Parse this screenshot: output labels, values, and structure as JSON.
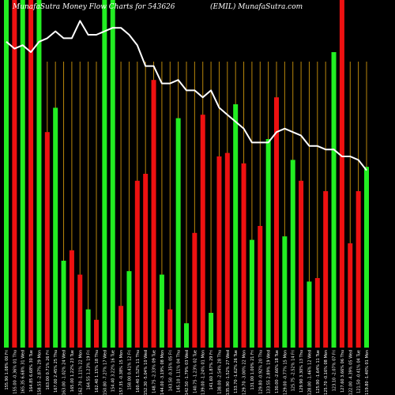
{
  "header": {
    "title": "MunafaSutra  Money Flow  Charts for 543626",
    "ticker": "(EMIL) MunafaSutra.com"
  },
  "colors": {
    "background": "#000000",
    "up": "#22ee22",
    "down": "#ee1111",
    "grid": "#b8860b",
    "line": "#ffffff"
  },
  "chart_data": {
    "type": "bar",
    "title": "MunafaSutra  Money Flow  Charts for 543626",
    "ylim": [
      0,
      100
    ],
    "grid": true,
    "legend": "none",
    "categories": [
      "155.90 1.08% 00 Fri",
      "155.00 -0.36% 01 Thu",
      "165.35 6.68% 31 Wed",
      "164.85 6.68% 30 Tue",
      "158.55 -2.87% 29 Mon",
      "163.00 0.71% 26 Fri",
      "167.00 2.45% 25 Thu",
      "163.00 -1.02% 24 Wed",
      "165.00 1.22% 23 Tue",
      "162.70 -1.11% 22 Mon",
      "164.55 1.23% 19 Fri",
      "162.40 1.15% 18 Thu",
      "150.80 -7.27% 17 Wed",
      "154.40 3.22% 16 Tue",
      "157.35 -0.38% 15 Mon",
      "158.00 0.41% 12 Fri",
      "160.40 1.52% 11 Thu",
      "152.30 -5.04% 10 Wed",
      "148.75 -2.33% 09 Tue",
      "144.00 -3.19% 08 Mon",
      "143.50 -0.35% 05 Fri",
      "145.10 1.11% 04 Thu",
      "142.50 -1.79% 03 Wed",
      "140.75 -1.23% 02 Tue",
      "139.00 -1.24% 01 Mon",
      "141.60 1.87% 29 Fri",
      "138.00 -2.54% 28 Thu",
      "135.90 -1.52% 27 Wed",
      "133.70 -1.62% 26 Tue",
      "129.70 -3.00% 22 Mon",
      "131.00 1.00% 21 Fri",
      "129.80 -0.92% 20 Thu",
      "133.55 2.89% 19 Wed",
      "130.00 -2.66% 18 Tue",
      "129.00 -0.77% 15 Mon",
      "125.75 -2.52% 14 Fri",
      "129.90 3.30% 13 Thu",
      "128.00 -1.46% 12 Wed",
      "125.90 -1.64% 11 Tue",
      "125.70 -0.16% 08 Mon",
      "123.10 -2.07% 07 Fri",
      "127.60 3.66% 06 Thu",
      "122.00 -4.39% 05 Wed",
      "121.50 -0.41% 04 Tue",
      "119.80 -1.40% 01 Mon"
    ],
    "series": [
      {
        "role": "bars",
        "values": [
          100,
          100,
          100,
          100,
          100,
          62,
          69,
          25,
          28,
          21,
          11,
          8,
          100,
          100,
          12,
          22,
          48,
          50,
          77,
          21,
          11,
          66,
          7,
          33,
          67,
          10,
          55,
          56,
          70,
          53,
          31,
          35,
          60,
          72,
          32,
          54,
          48,
          19,
          20,
          45,
          85,
          100,
          30,
          45,
          52
        ],
        "colors": [
          "green",
          "red",
          "green",
          "red",
          "green",
          "red",
          "green",
          "green",
          "red",
          "red",
          "green",
          "red",
          "green",
          "green",
          "red",
          "green",
          "red",
          "red",
          "red",
          "green",
          "red",
          "green",
          "green",
          "red",
          "red",
          "green",
          "red",
          "red",
          "green",
          "red",
          "green",
          "red",
          "green",
          "red",
          "green",
          "green",
          "red",
          "green",
          "red",
          "red",
          "green",
          "red",
          "red",
          "red",
          "green"
        ]
      },
      {
        "role": "price-line",
        "values": [
          88,
          86,
          87,
          85,
          88,
          89,
          91,
          89,
          89,
          94,
          90,
          90,
          91,
          92,
          92,
          90,
          87,
          81,
          81,
          76,
          76,
          77,
          74,
          74,
          72,
          74,
          69,
          67,
          65,
          63,
          59,
          59,
          59,
          62,
          63,
          62,
          61,
          58,
          58,
          57,
          57,
          55,
          55,
          54,
          51
        ]
      }
    ]
  }
}
